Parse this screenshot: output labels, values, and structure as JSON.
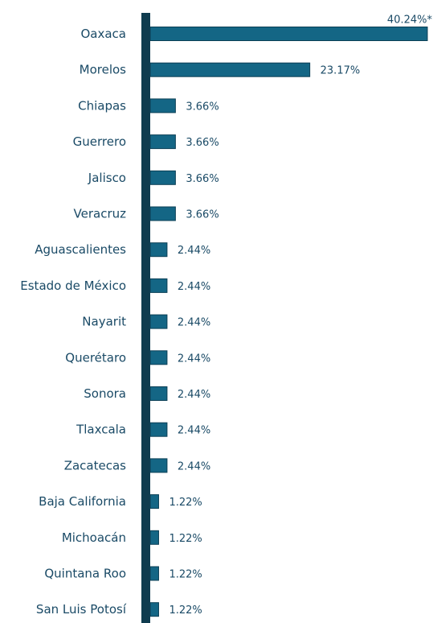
{
  "chart_data": {
    "type": "bar",
    "orientation": "horizontal",
    "categories": [
      "Oaxaca",
      "Morelos",
      "Chiapas",
      "Guerrero",
      "Jalisco",
      "Veracruz",
      "Aguascalientes",
      "Estado de México",
      "Nayarit",
      "Querétaro",
      "Sonora",
      "Tlaxcala",
      "Zacatecas",
      "Baja California",
      "Michoacán",
      "Quintana Roo",
      "San Luis Potosí"
    ],
    "values": [
      40.24,
      23.17,
      3.66,
      3.66,
      3.66,
      3.66,
      2.44,
      2.44,
      2.44,
      2.44,
      2.44,
      2.44,
      2.44,
      1.22,
      1.22,
      1.22,
      1.22
    ],
    "value_labels": [
      "40.24%*",
      "23.17%",
      "3.66%",
      "3.66%",
      "3.66%",
      "3.66%",
      "2.44%",
      "2.44%",
      "2.44%",
      "2.44%",
      "2.44%",
      "2.44%",
      "2.44%",
      "1.22%",
      "1.22%",
      "1.22%",
      "1.22%"
    ],
    "unit": "%",
    "xlim": [
      0,
      40.24
    ],
    "grid": false,
    "legend": "none",
    "colors": {
      "bar": "#146685",
      "bar_outline": "#0b3f55",
      "axis": "#0f3c4f",
      "text": "#1a4a66"
    }
  }
}
